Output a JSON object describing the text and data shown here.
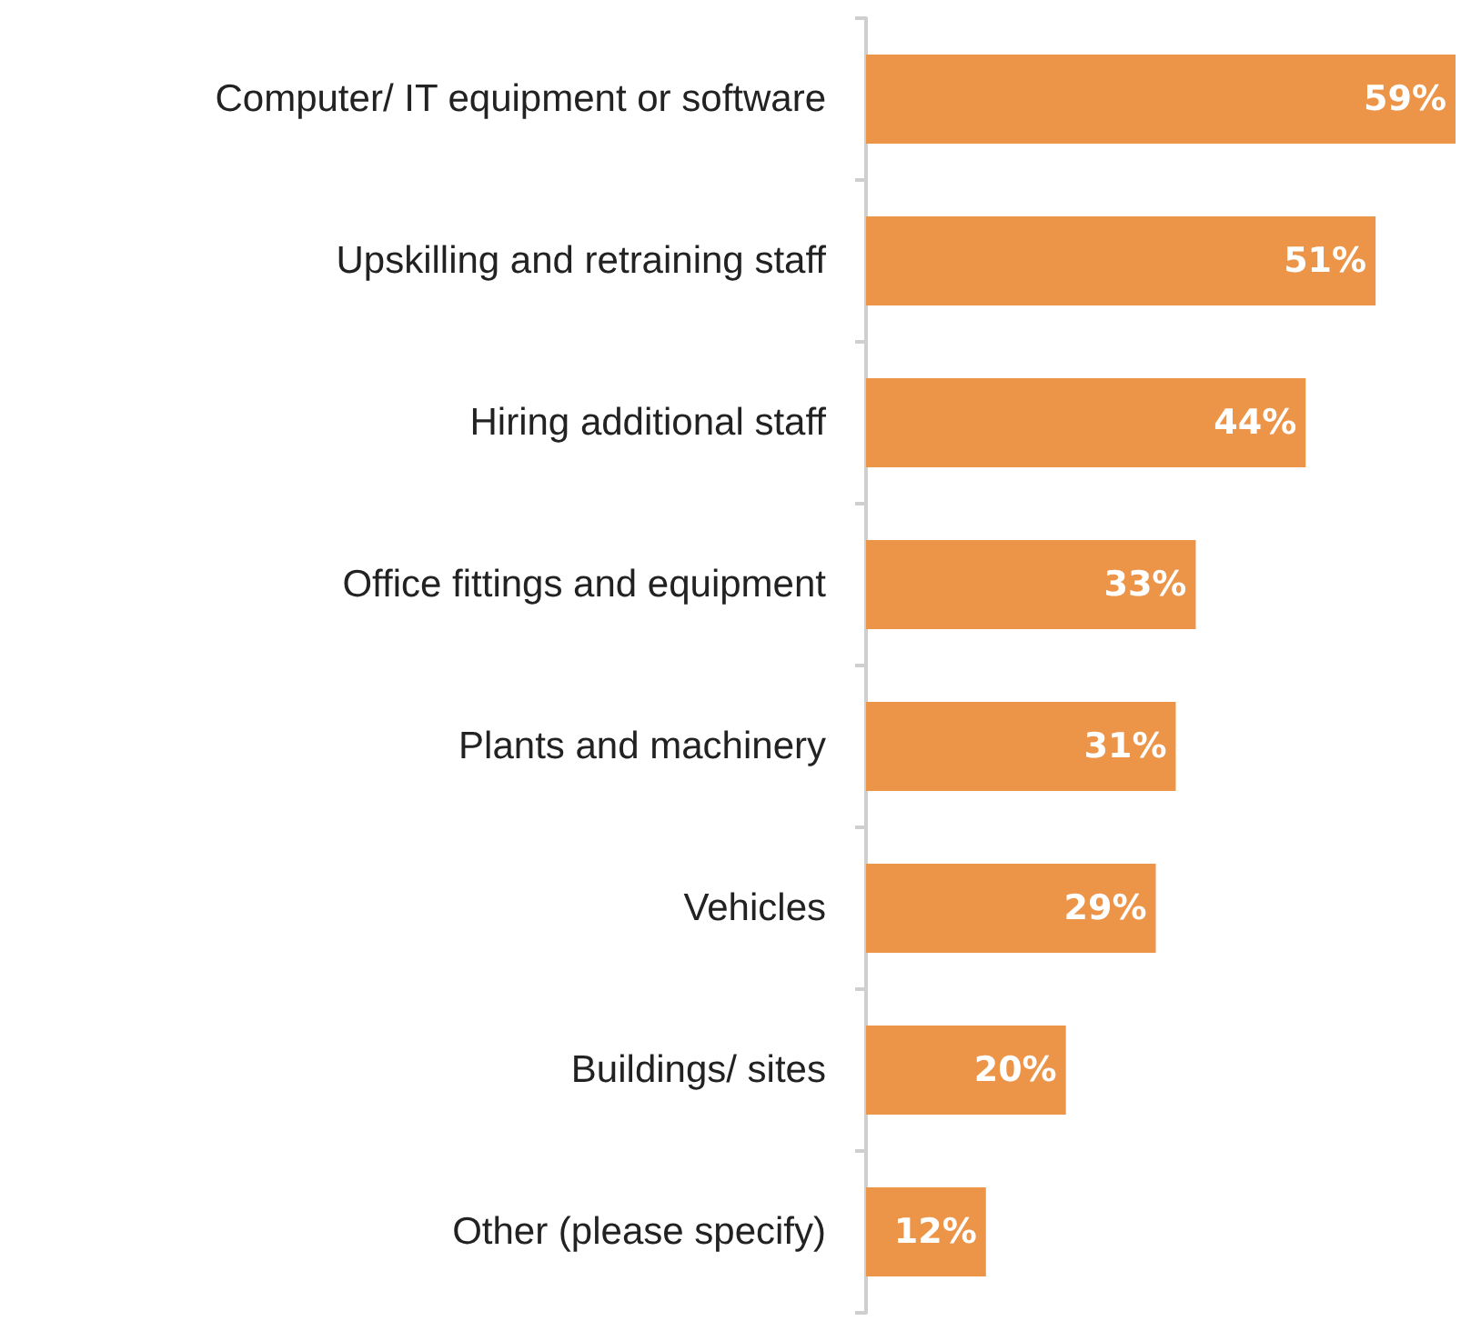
{
  "chart_data": {
    "type": "bar",
    "orientation": "horizontal",
    "categories": [
      "Computer/ IT equipment or software",
      "Upskilling and retraining staff",
      "Hiring additional staff",
      "Office fittings and equipment",
      "Plants and machinery",
      "Vehicles",
      "Buildings/ sites",
      "Other (please specify)"
    ],
    "values": [
      59,
      51,
      44,
      33,
      31,
      29,
      20,
      12
    ],
    "value_labels": [
      "59%",
      "51%",
      "44%",
      "33%",
      "31%",
      "29%",
      "20%",
      "12%"
    ],
    "color": "#ec9549"
  }
}
